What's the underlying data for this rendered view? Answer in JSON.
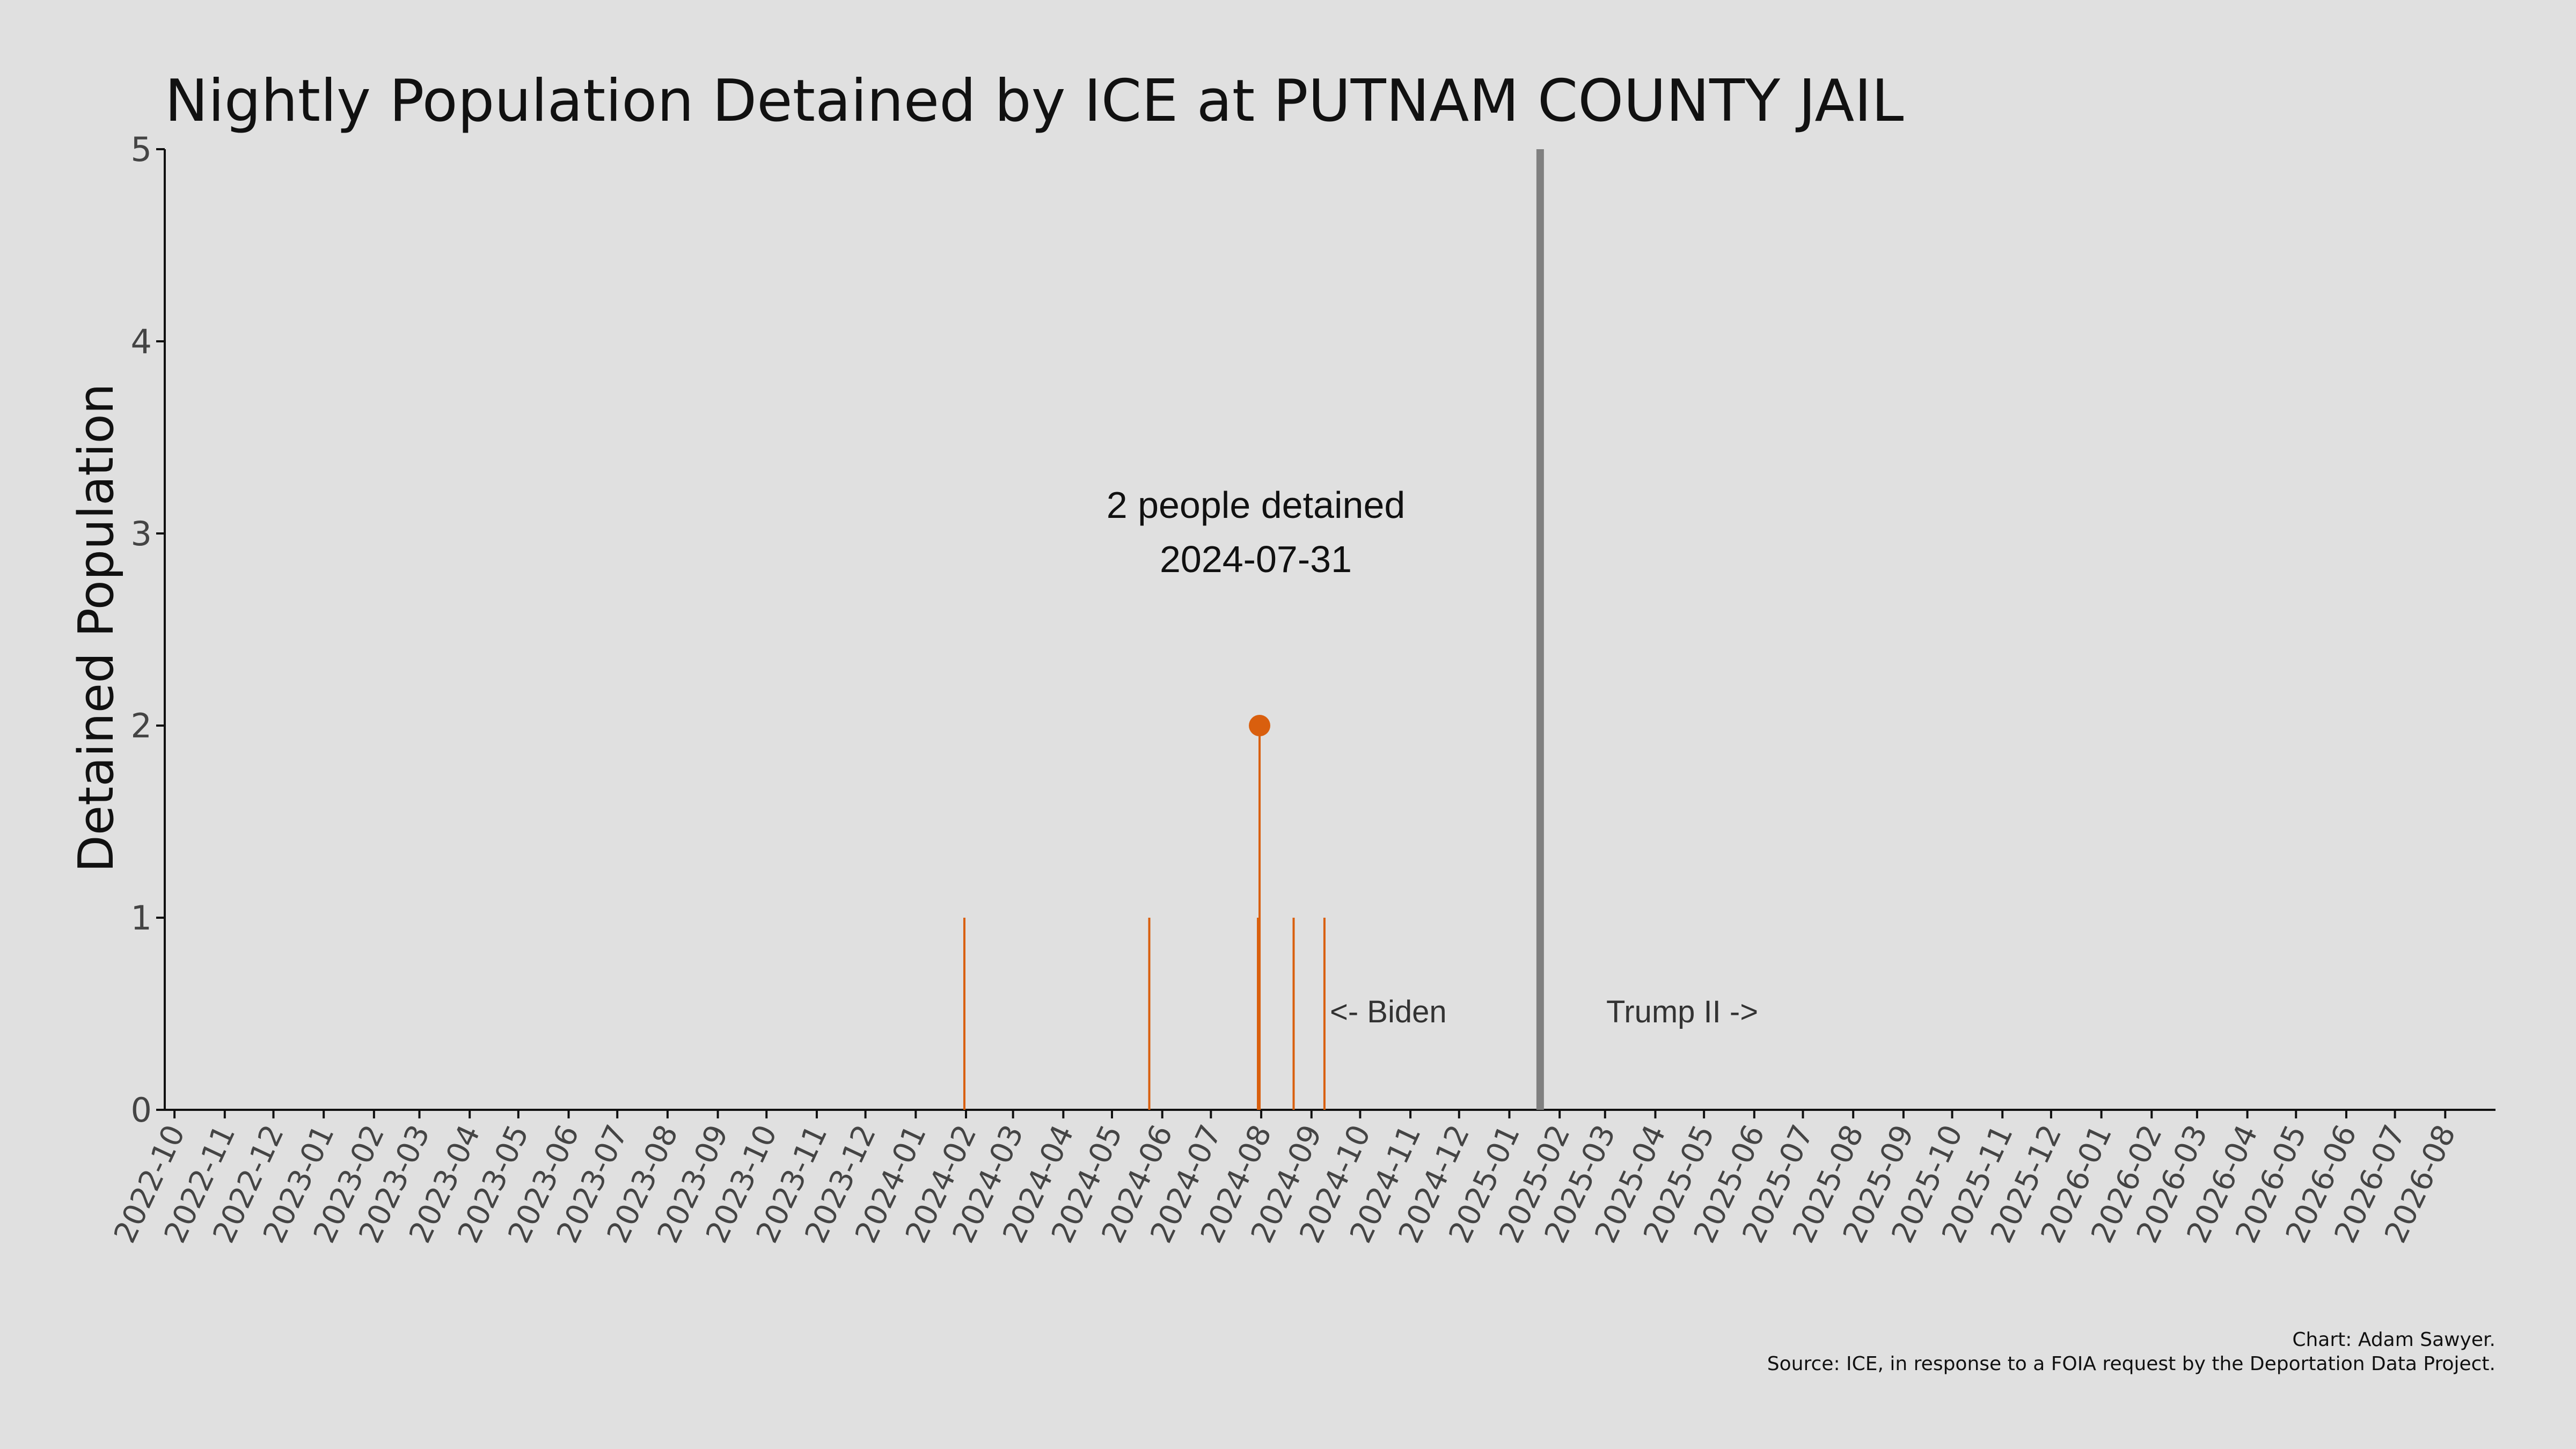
{
  "chart_data": {
    "type": "line",
    "title": "Nightly Population Detained by ICE at PUTNAM COUNTY JAIL",
    "xlabel": "",
    "ylabel": "Detained Population",
    "ylim": [
      0,
      5
    ],
    "yticks": [
      "0",
      "1",
      "2",
      "3",
      "4",
      "5"
    ],
    "xlim": [
      "2022-09-25",
      "2026-09-01"
    ],
    "xticks": [
      "2022-10",
      "2022-11",
      "2022-12",
      "2023-01",
      "2023-02",
      "2023-03",
      "2023-04",
      "2023-05",
      "2023-06",
      "2023-07",
      "2023-08",
      "2023-09",
      "2023-10",
      "2023-11",
      "2023-12",
      "2024-01",
      "2024-02",
      "2024-03",
      "2024-04",
      "2024-05",
      "2024-06",
      "2024-07",
      "2024-08",
      "2024-09",
      "2024-10",
      "2024-11",
      "2024-12",
      "2025-01",
      "2025-02",
      "2025-03",
      "2025-04",
      "2025-05",
      "2025-06",
      "2025-07",
      "2025-08",
      "2025-09",
      "2025-10",
      "2025-11",
      "2025-12",
      "2026-01",
      "2026-02",
      "2026-03",
      "2026-04",
      "2026-05",
      "2026-06",
      "2026-07",
      "2026-08"
    ],
    "series": [
      {
        "color": "#d95f0e",
        "points": [
          {
            "x": "2024-01-31",
            "y": 1
          },
          {
            "x": "2024-05-24",
            "y": 1
          },
          {
            "x": "2024-07-30",
            "y": 1
          },
          {
            "x": "2024-07-31",
            "y": 2
          },
          {
            "x": "2024-08-21",
            "y": 1
          },
          {
            "x": "2024-09-09",
            "y": 1
          }
        ]
      }
    ],
    "highlight": {
      "x": "2024-07-31",
      "y": 2,
      "color": "#d95f0e"
    },
    "annotation": {
      "line1": "2 people detained",
      "line2": "2024-07-31"
    },
    "divider": {
      "x": "2025-01-20",
      "color": "#808080"
    },
    "era_labels": {
      "left": "<- Biden",
      "right": "Trump II ->"
    },
    "grid": false,
    "legend": "none"
  },
  "credits": {
    "line1": "Chart: Adam Sawyer.",
    "line2": "Source: ICE, in response to a FOIA request by the Deportation Data Project."
  }
}
